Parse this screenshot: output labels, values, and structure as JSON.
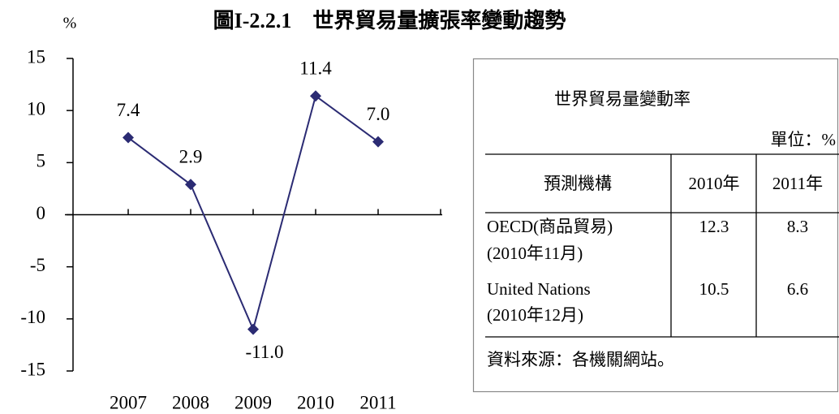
{
  "chart_data": {
    "type": "line",
    "title": "圖I-2.2.1　世界貿易量擴張率變動趨勢",
    "y_label": "%",
    "categories": [
      "2007",
      "2008",
      "2009",
      "2010",
      "2011"
    ],
    "values": [
      7.4,
      2.9,
      -11.0,
      11.4,
      7.0
    ],
    "value_labels": [
      "7.4",
      "2.9",
      "-11.0",
      "11.4",
      "7.0"
    ],
    "color": "#2b2b73",
    "ylim": [
      -15,
      15
    ],
    "yticks": [
      -15,
      -10,
      -5,
      0,
      5,
      10,
      15
    ],
    "grid": false
  },
  "table": {
    "title": "世界貿易量變動率",
    "unit": "單位：%",
    "headers": [
      "預測機構",
      "2010年",
      "2011年"
    ],
    "rows": [
      {
        "org": [
          "OECD(商品貿易)",
          "(2010年11月)"
        ],
        "v2010": 12.3,
        "v2011": 8.3
      },
      {
        "org": [
          "United Nations",
          "(2010年12月)"
        ],
        "v2010": 10.5,
        "v2011": 6.6
      }
    ],
    "source": "資料來源：各機關網站。"
  }
}
